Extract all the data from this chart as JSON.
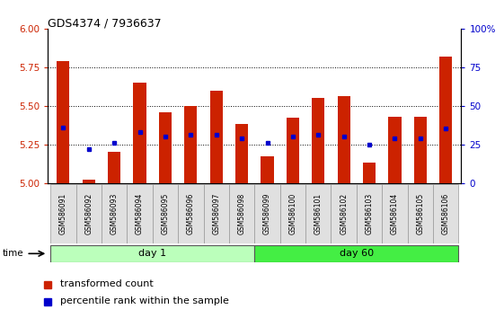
{
  "title": "GDS4374 / 7936637",
  "samples": [
    "GSM586091",
    "GSM586092",
    "GSM586093",
    "GSM586094",
    "GSM586095",
    "GSM586096",
    "GSM586097",
    "GSM586098",
    "GSM586099",
    "GSM586100",
    "GSM586101",
    "GSM586102",
    "GSM586103",
    "GSM586104",
    "GSM586105",
    "GSM586106"
  ],
  "bar_values": [
    5.79,
    5.02,
    5.2,
    5.65,
    5.46,
    5.5,
    5.6,
    5.38,
    5.17,
    5.42,
    5.55,
    5.56,
    5.13,
    5.43,
    5.43,
    5.82
  ],
  "dot_values": [
    5.36,
    5.22,
    5.26,
    5.33,
    5.3,
    5.31,
    5.31,
    5.29,
    5.26,
    5.3,
    5.31,
    5.3,
    5.25,
    5.29,
    5.29,
    5.35
  ],
  "ylim_left": [
    5.0,
    6.0
  ],
  "ylim_right": [
    0,
    100
  ],
  "yticks_left": [
    5.0,
    5.25,
    5.5,
    5.75,
    6.0
  ],
  "yticks_right": [
    0,
    25,
    50,
    75,
    100
  ],
  "bar_color": "#cc2200",
  "dot_color": "#0000cc",
  "base_value": 5.0,
  "day1_count": 8,
  "day60_count": 8,
  "day1_label": "day 1",
  "day60_label": "day 60",
  "day1_color": "#bbffbb",
  "day60_color": "#44ee44",
  "tick_label_color_left": "#cc2200",
  "tick_label_color_right": "#0000cc",
  "grid_lines": [
    5.25,
    5.5,
    5.75
  ],
  "time_label": "time",
  "legend_items": [
    "transformed count",
    "percentile rank within the sample"
  ]
}
